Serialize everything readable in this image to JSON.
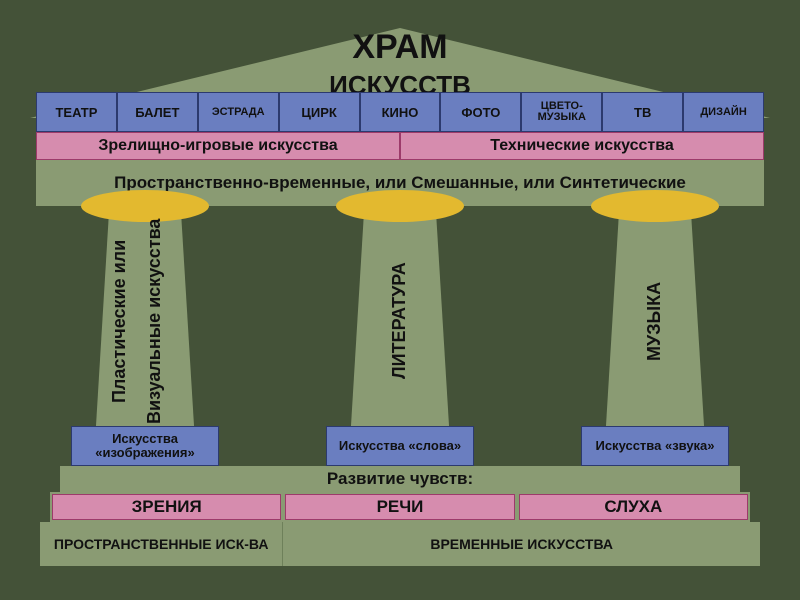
{
  "colors": {
    "background": "#445238",
    "greenish": "#8a9b73",
    "blue": "#6a7ec0",
    "blue_border": "#2c3a6e",
    "pink": "#d68cae",
    "pink_border": "#9c3b6a",
    "yellow": "#e3b92f",
    "text": "#111111"
  },
  "title": {
    "line1": "ХРАМ",
    "line2": "ИСКУССТВ"
  },
  "top_arts": [
    {
      "label": "ТЕАТР",
      "size": "normal"
    },
    {
      "label": "БАЛЕТ",
      "size": "normal"
    },
    {
      "label": "ЭСТРАДА",
      "size": "small"
    },
    {
      "label": "ЦИРК",
      "size": "normal"
    },
    {
      "label": "КИНО",
      "size": "normal"
    },
    {
      "label": "ФОТО",
      "size": "normal"
    },
    {
      "label": "ЦВЕТО-МУЗЫКА",
      "size": "small"
    },
    {
      "label": "ТВ",
      "size": "normal"
    },
    {
      "label": "ДИЗАЙН",
      "size": "small"
    }
  ],
  "pink_top": [
    {
      "label": "Зрелищно-игровые искусства",
      "flex": 1
    },
    {
      "label": "Технические искусства",
      "flex": 1
    }
  ],
  "entablature": "Пространственно-временные, или Смешанные, или Синтетические",
  "pillars": [
    {
      "vertical": [
        "Пластические или",
        "Визуальные искусства"
      ],
      "base": "Искусства «изображения»"
    },
    {
      "vertical": [
        "ЛИТЕРАТУРА"
      ],
      "base": "Искусства «слова»"
    },
    {
      "vertical": [
        "МУЗЫКА"
      ],
      "base": "Искусства «звука»"
    }
  ],
  "senses_title": "Развитие чувств:",
  "senses": [
    "ЗРЕНИЯ",
    "РЕЧИ",
    "СЛУХА"
  ],
  "bottom": [
    {
      "label": "ПРОСТРАНСТВЕННЫЕ ИСК-ВА",
      "flex": 1
    },
    {
      "label": "ВРЕМЕННЫЕ ИСКУССТВА",
      "flex": 2
    }
  ]
}
